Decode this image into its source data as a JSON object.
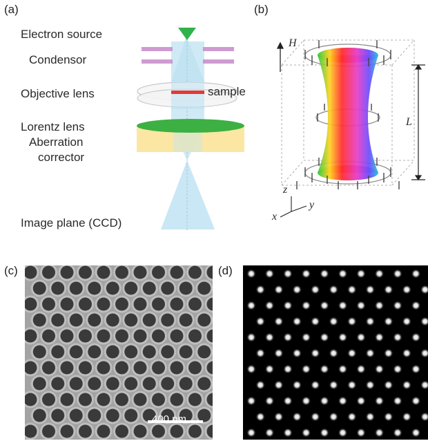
{
  "figure": {
    "panels": {
      "a": "(a)",
      "b": "(b)",
      "c": "(c)",
      "d": "(d)"
    },
    "schematic_a": {
      "electron_source": "Electron source",
      "condensor": "Condensor",
      "objective_lens": "Objective lens",
      "sample": "sample",
      "lorentz_lens": "Lorentz lens",
      "aberration": "Aberration",
      "corrector": "corrector",
      "image_plane": "Image plane (CCD)"
    },
    "schematic_b": {
      "field_label": "H",
      "length_label": "L",
      "axis_z": "z",
      "axis_y": "y",
      "axis_x": "x"
    },
    "image_c": {
      "scale_bar": "400 nm"
    },
    "colors": {
      "beam": "#bfe3f2",
      "source": "#2fb34a",
      "condensor": "#c58ac9",
      "sample": "#e53935",
      "lorentz_lens": "#3cb043",
      "corrector": "#fbe39a"
    }
  }
}
